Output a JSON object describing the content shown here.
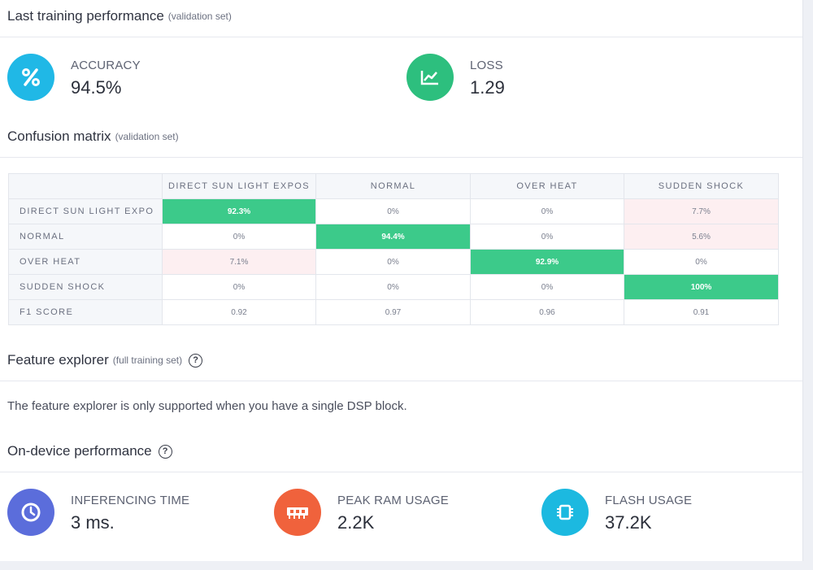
{
  "training": {
    "title": "Last training performance",
    "subtitle": "(validation set)",
    "accuracy": {
      "label": "ACCURACY",
      "value": "94.5%",
      "icon": "percent-icon",
      "color": "#20b8e6"
    },
    "loss": {
      "label": "LOSS",
      "value": "1.29",
      "icon": "line-chart-icon",
      "color": "#2dbf7e"
    }
  },
  "confusion": {
    "title": "Confusion matrix",
    "subtitle": "(validation set)",
    "columns": [
      "DIRECT SUN LIGHT EXPOS",
      "NORMAL",
      "OVER HEAT",
      "SUDDEN SHOCK"
    ],
    "rows": [
      {
        "label": "DIRECT SUN LIGHT EXPO",
        "cells": [
          "92.3%",
          "0%",
          "0%",
          "7.7%"
        ]
      },
      {
        "label": "NORMAL",
        "cells": [
          "0%",
          "94.4%",
          "0%",
          "5.6%"
        ]
      },
      {
        "label": "OVER HEAT",
        "cells": [
          "7.1%",
          "0%",
          "92.9%",
          "0%"
        ]
      },
      {
        "label": "SUDDEN SHOCK",
        "cells": [
          "0%",
          "0%",
          "0%",
          "100%"
        ]
      }
    ],
    "f1": {
      "label": "F1 SCORE",
      "cells": [
        "0.92",
        "0.97",
        "0.96",
        "0.91"
      ]
    },
    "hit_color": "#3cca8a",
    "miss_color": "#fdeff1"
  },
  "feature_explorer": {
    "title": "Feature explorer",
    "subtitle": "(full training set)",
    "help": "?",
    "note": "The feature explorer is only supported when you have a single DSP block."
  },
  "on_device": {
    "title": "On-device performance",
    "help": "?",
    "inferencing": {
      "label": "INFERENCING TIME",
      "value": "3 ms.",
      "icon": "clock-icon",
      "color": "#5b6ddb"
    },
    "ram": {
      "label": "PEAK RAM USAGE",
      "value": "2.2K",
      "icon": "memory-icon",
      "color": "#f0623c"
    },
    "flash": {
      "label": "FLASH USAGE",
      "value": "37.2K",
      "icon": "chip-icon",
      "color": "#1cb9e0"
    }
  }
}
